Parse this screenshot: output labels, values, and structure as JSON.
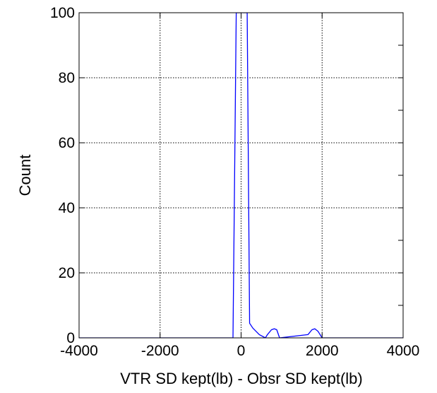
{
  "chart_data": {
    "type": "line",
    "title": "",
    "xlabel": "VTR SD kept(lb) - Obsr SD kept(lb)",
    "ylabel": "Count",
    "xlim": [
      -4000,
      4000
    ],
    "ylim": [
      0,
      100
    ],
    "x_ticks": [
      -4000,
      -2000,
      0,
      2000,
      4000
    ],
    "y_ticks": [
      0,
      20,
      40,
      60,
      80,
      100
    ],
    "x_tick_labels": [
      "-4000",
      "-2000",
      "0",
      "2000",
      "4000"
    ],
    "y_tick_labels": [
      "0",
      "20",
      "40",
      "60",
      "80",
      "100"
    ],
    "grid": true,
    "series": [
      {
        "color": "#0000ff",
        "x": [
          -4000,
          -200,
          -120,
          -90,
          120,
          150,
          210,
          290,
          450,
          600,
          650,
          750,
          820,
          880,
          950,
          1650,
          1750,
          1820,
          1900,
          2000,
          4000
        ],
        "y": [
          0,
          0,
          100,
          100,
          100,
          100,
          4.5,
          3,
          1,
          0,
          1,
          2.5,
          2.8,
          2.5,
          0,
          1,
          2.5,
          2.8,
          2,
          0,
          0
        ]
      }
    ]
  }
}
